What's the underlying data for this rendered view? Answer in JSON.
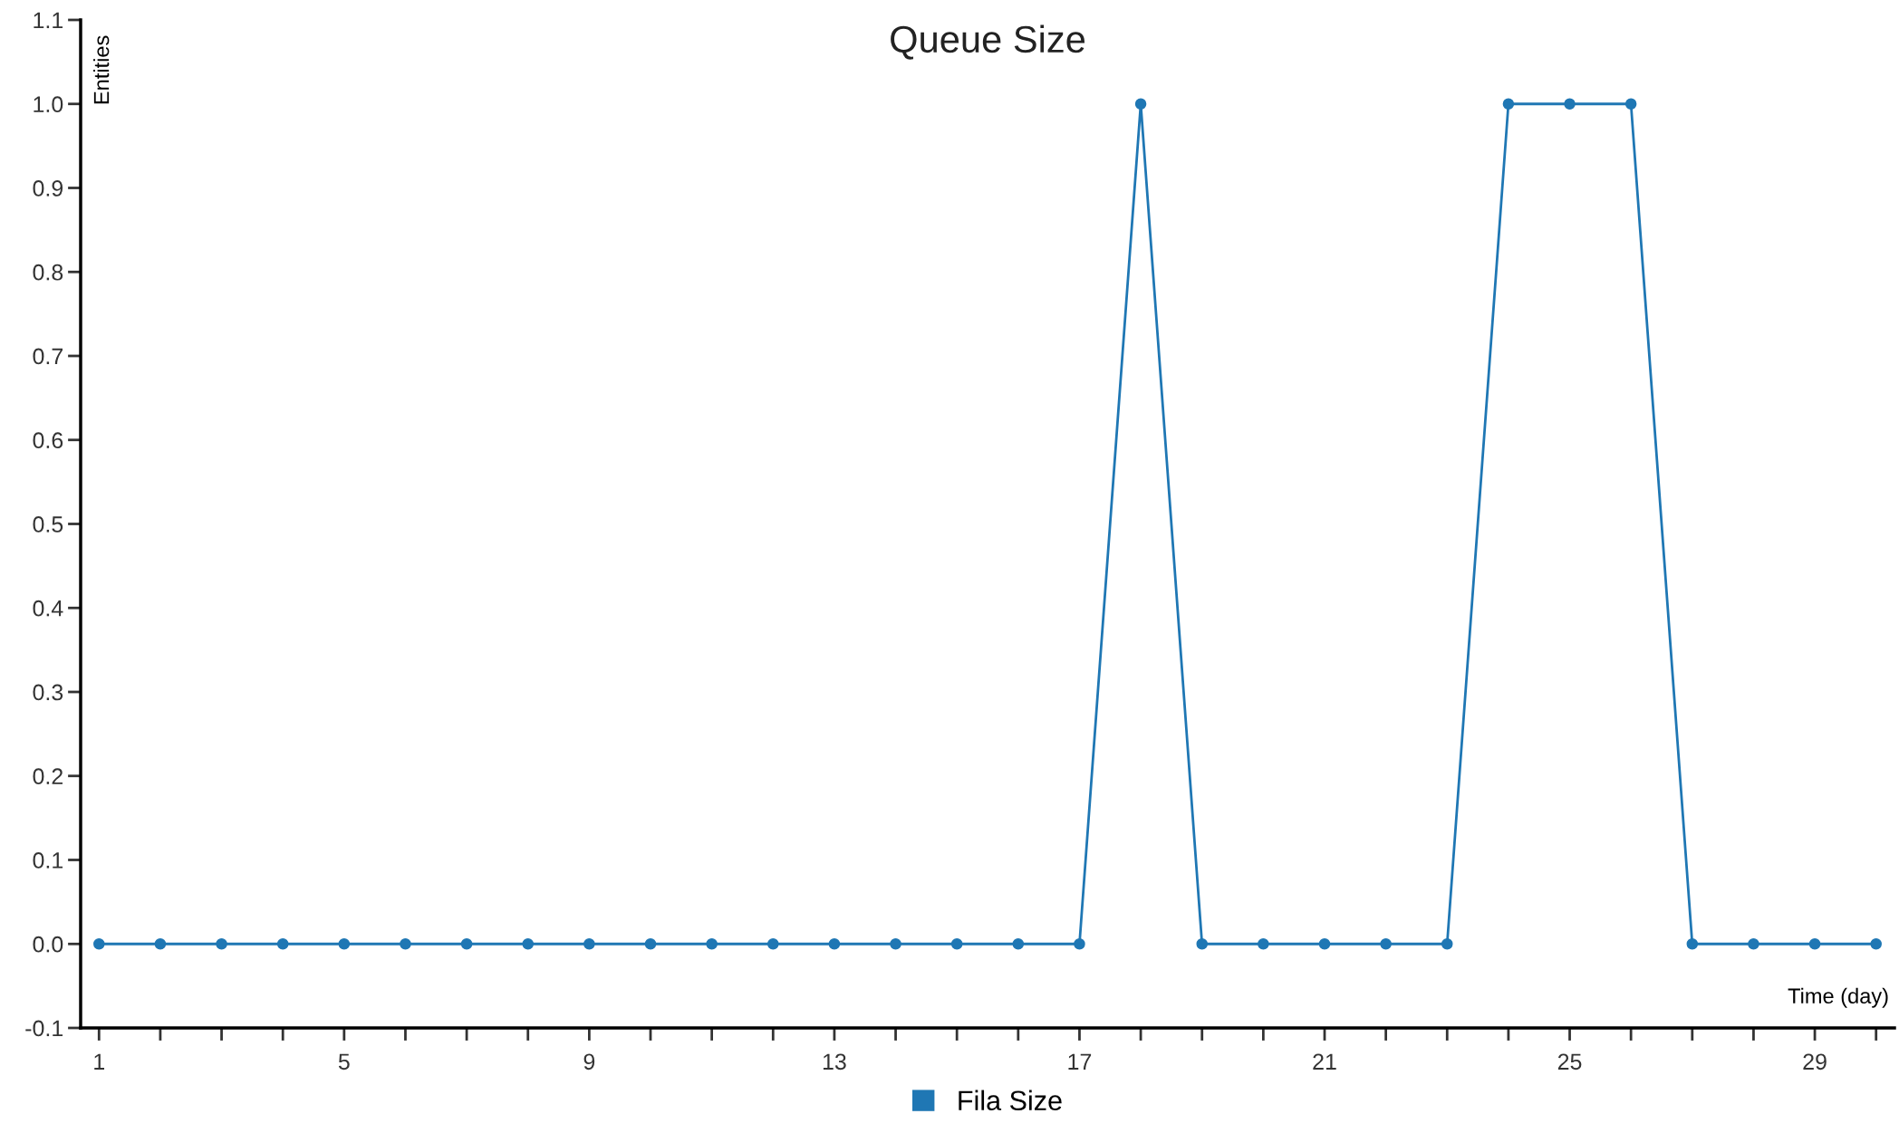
{
  "chart_data": {
    "type": "line",
    "title": "Queue Size",
    "xlabel": "Time (day)",
    "ylabel": "Entities",
    "x": [
      1,
      2,
      3,
      4,
      5,
      6,
      7,
      8,
      9,
      10,
      11,
      12,
      13,
      14,
      15,
      16,
      17,
      18,
      19,
      20,
      21,
      22,
      23,
      24,
      25,
      26,
      27,
      28,
      29,
      30
    ],
    "series": [
      {
        "name": "Fila Size",
        "color": "#1f77b4",
        "values": [
          0,
          0,
          0,
          0,
          0,
          0,
          0,
          0,
          0,
          0,
          0,
          0,
          0,
          0,
          0,
          0,
          0,
          1,
          0,
          0,
          0,
          0,
          0,
          1,
          1,
          1,
          0,
          0,
          0,
          0
        ]
      }
    ],
    "xlim": [
      0.7,
      30.3
    ],
    "ylim": [
      -0.1,
      1.1
    ],
    "xticks": [
      1,
      {
        "value": 2,
        "label": null
      },
      {
        "value": 3,
        "label": null
      },
      {
        "value": 4,
        "label": null
      },
      5,
      {
        "value": 6,
        "label": null
      },
      {
        "value": 7,
        "label": null
      },
      {
        "value": 8,
        "label": null
      },
      9,
      {
        "value": 10,
        "label": null
      },
      {
        "value": 11,
        "label": null
      },
      {
        "value": 12,
        "label": null
      },
      13,
      {
        "value": 14,
        "label": null
      },
      {
        "value": 15,
        "label": null
      },
      {
        "value": 16,
        "label": null
      },
      17,
      {
        "value": 18,
        "label": null
      },
      {
        "value": 19,
        "label": null
      },
      {
        "value": 20,
        "label": null
      },
      21,
      {
        "value": 22,
        "label": null
      },
      {
        "value": 23,
        "label": null
      },
      {
        "value": 24,
        "label": null
      },
      25,
      {
        "value": 26,
        "label": null
      },
      {
        "value": 27,
        "label": null
      },
      {
        "value": 28,
        "label": null
      },
      29,
      {
        "value": 30,
        "label": null
      }
    ],
    "yticks": [
      {
        "value": -0.1,
        "label": "-0.1"
      },
      {
        "value": 0,
        "label": "0.0"
      },
      {
        "value": 0.1,
        "label": "0.1"
      },
      {
        "value": 0.2,
        "label": "0.2"
      },
      {
        "value": 0.3,
        "label": "0.3"
      },
      {
        "value": 0.4,
        "label": "0.4"
      },
      {
        "value": 0.5,
        "label": "0.5"
      },
      {
        "value": 0.6,
        "label": "0.6"
      },
      {
        "value": 0.7,
        "label": "0.7"
      },
      {
        "value": 0.8,
        "label": "0.8"
      },
      {
        "value": 0.9,
        "label": "0.9"
      },
      {
        "value": 1.0,
        "label": "1.0"
      },
      {
        "value": 1.1,
        "label": "1.1"
      }
    ],
    "grid": false,
    "legend": "bottom",
    "marker": "circle",
    "line_style": "solid"
  }
}
